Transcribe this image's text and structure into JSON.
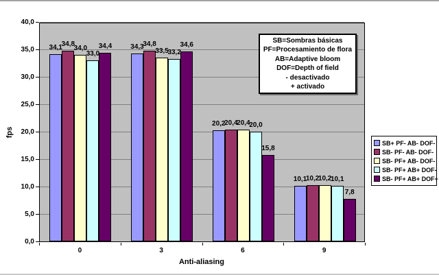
{
  "chart_data": {
    "type": "bar",
    "title": "",
    "xlabel": "Anti-aliasing",
    "ylabel": "fps",
    "categories": [
      "0",
      "3",
      "6",
      "9"
    ],
    "series": [
      {
        "name": "SB+ PF- AB- DOF-",
        "color": "#9999FF",
        "values": [
          34.1,
          34.3,
          20.2,
          10.1
        ],
        "labels": [
          "34,1",
          "34,3",
          "20,2",
          "10,1"
        ]
      },
      {
        "name": "SB- PF- AB- DOF-",
        "color": "#993366",
        "values": [
          34.8,
          34.8,
          20.4,
          10.2
        ],
        "labels": [
          "34,8",
          "34,8",
          "20,4",
          "10,2"
        ]
      },
      {
        "name": "SB- PF+ AB- DOF-",
        "color": "#FFFFCC",
        "values": [
          34.0,
          33.5,
          20.4,
          10.2
        ],
        "labels": [
          "34,0",
          "33,5",
          "20,4",
          "10,2"
        ]
      },
      {
        "name": "SB- PF+ AB+ DOF-",
        "color": "#CCFFFF",
        "values": [
          33.0,
          33.2,
          20.0,
          10.1
        ],
        "labels": [
          "33,0",
          "33,2",
          "20,0",
          "10,1"
        ]
      },
      {
        "name": "SB- PF+ AB+ DOF+",
        "color": "#660066",
        "values": [
          34.4,
          34.6,
          15.8,
          7.8
        ],
        "labels": [
          "34,4",
          "34,6",
          "15,8",
          "7,8"
        ]
      }
    ],
    "ylim": [
      0,
      40
    ],
    "ytick_step": 5,
    "ytick_labels": [
      "0,0",
      "5,0",
      "10,0",
      "15,0",
      "20,0",
      "25,0",
      "30,0",
      "35,0",
      "40,0"
    ],
    "grid": true,
    "legend_position": "right",
    "plot_bg": "#C0C0C0",
    "gridline_color": "#808080"
  },
  "annotation": {
    "lines": [
      "SB=Sombras básicas",
      "PF=Procesamiento de flora",
      "AB=Adaptive bloom",
      "DOF=Depth of field",
      "- desactivado",
      "+ activado"
    ]
  }
}
